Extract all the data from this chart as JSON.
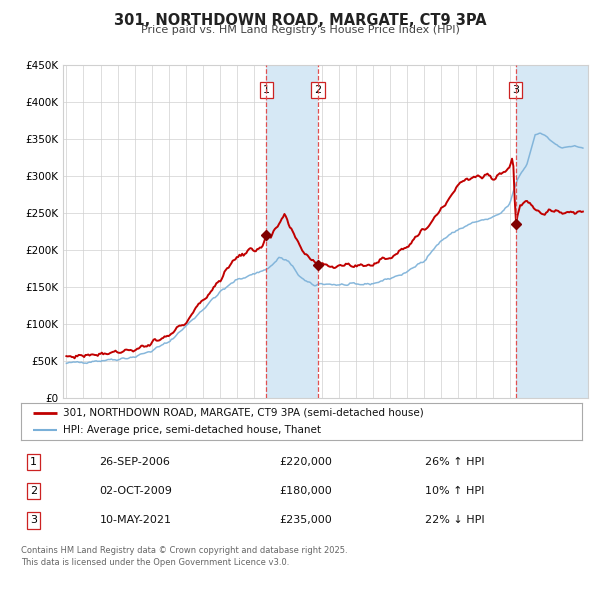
{
  "title": "301, NORTHDOWN ROAD, MARGATE, CT9 3PA",
  "subtitle": "Price paid vs. HM Land Registry's House Price Index (HPI)",
  "ylim": [
    0,
    450000
  ],
  "yticks": [
    0,
    50000,
    100000,
    150000,
    200000,
    250000,
    300000,
    350000,
    400000,
    450000
  ],
  "ytick_labels": [
    "£0",
    "£50K",
    "£100K",
    "£150K",
    "£200K",
    "£250K",
    "£300K",
    "£350K",
    "£400K",
    "£450K"
  ],
  "xlim_start": 1994.8,
  "xlim_end": 2025.6,
  "xticks": [
    1995,
    1996,
    1997,
    1998,
    1999,
    2000,
    2001,
    2002,
    2003,
    2004,
    2005,
    2006,
    2007,
    2008,
    2009,
    2010,
    2011,
    2012,
    2013,
    2014,
    2015,
    2016,
    2017,
    2018,
    2019,
    2020,
    2021,
    2022,
    2023,
    2024,
    2025
  ],
  "hpi_color": "#7ab0d8",
  "price_color": "#c00000",
  "marker_color": "#800000",
  "shade_color": "#d6e8f5",
  "dashed_color": "#e05050",
  "background_color": "#ffffff",
  "grid_color": "#d0d0d0",
  "transaction1": {
    "date": 2006.73,
    "price": 220000,
    "label": "1"
  },
  "transaction2": {
    "date": 2009.75,
    "price": 180000,
    "label": "2"
  },
  "transaction3": {
    "date": 2021.36,
    "price": 235000,
    "label": "3"
  },
  "legend_line1": "301, NORTHDOWN ROAD, MARGATE, CT9 3PA (semi-detached house)",
  "legend_line2": "HPI: Average price, semi-detached house, Thanet",
  "table_rows": [
    {
      "num": "1",
      "date": "26-SEP-2006",
      "price": "£220,000",
      "hpi": "26% ↑ HPI"
    },
    {
      "num": "2",
      "date": "02-OCT-2009",
      "price": "£180,000",
      "hpi": "10% ↑ HPI"
    },
    {
      "num": "3",
      "date": "10-MAY-2021",
      "price": "£235,000",
      "hpi": "22% ↓ HPI"
    }
  ],
  "footer": "Contains HM Land Registry data © Crown copyright and database right 2025.\nThis data is licensed under the Open Government Licence v3.0."
}
